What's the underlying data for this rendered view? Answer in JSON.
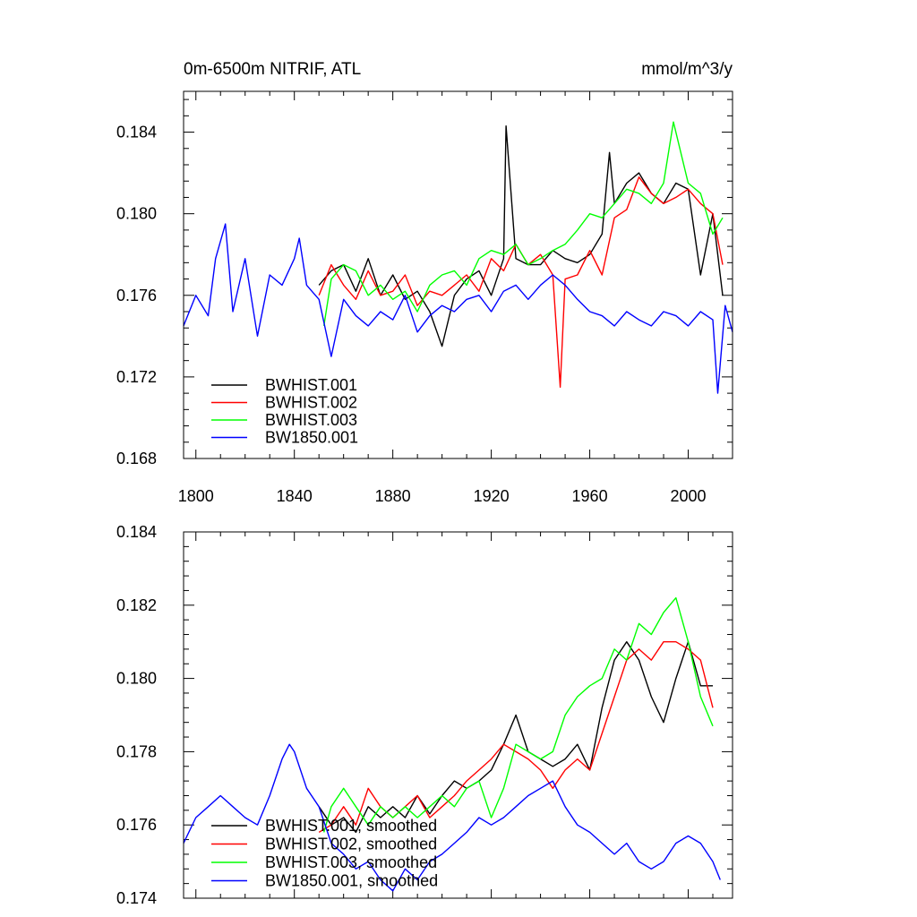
{
  "chart_data": [
    {
      "type": "line",
      "title": "0m-6500m NITRIF, ATL",
      "units": "mmol/m^3/y",
      "xlim": [
        1795,
        2018
      ],
      "ylim": [
        0.168,
        0.186
      ],
      "xticks": [
        1800,
        1840,
        1880,
        1920,
        1960,
        2000
      ],
      "yticks": [
        0.168,
        0.172,
        0.176,
        0.18,
        0.184
      ],
      "ytick_labels": [
        "0.168",
        "0.172",
        "0.176",
        "0.180",
        "0.184"
      ],
      "legend_position": "bottom-left",
      "series": [
        {
          "name": "BWHIST.001",
          "color": "#000000",
          "x": [
            1850,
            1855,
            1860,
            1865,
            1870,
            1875,
            1880,
            1885,
            1890,
            1895,
            1900,
            1905,
            1910,
            1915,
            1920,
            1925,
            1926,
            1930,
            1935,
            1940,
            1945,
            1950,
            1955,
            1960,
            1965,
            1968,
            1970,
            1975,
            1980,
            1985,
            1990,
            1995,
            2000,
            2005,
            2010,
            2014
          ],
          "values": [
            0.1765,
            0.1772,
            0.1775,
            0.1762,
            0.1778,
            0.176,
            0.177,
            0.1758,
            0.1762,
            0.1752,
            0.1735,
            0.176,
            0.1768,
            0.1772,
            0.176,
            0.1778,
            0.1843,
            0.1778,
            0.1775,
            0.1775,
            0.1782,
            0.1778,
            0.1776,
            0.178,
            0.179,
            0.183,
            0.1805,
            0.1815,
            0.182,
            0.181,
            0.1805,
            0.1815,
            0.1812,
            0.177,
            0.18,
            0.176
          ]
        },
        {
          "name": "BWHIST.002",
          "color": "#ff0000",
          "x": [
            1850,
            1855,
            1860,
            1865,
            1870,
            1875,
            1880,
            1885,
            1890,
            1895,
            1900,
            1905,
            1910,
            1915,
            1920,
            1925,
            1930,
            1935,
            1940,
            1945,
            1948,
            1950,
            1955,
            1960,
            1965,
            1970,
            1975,
            1980,
            1985,
            1990,
            1995,
            2000,
            2005,
            2010,
            2014
          ],
          "values": [
            0.176,
            0.1775,
            0.1765,
            0.1758,
            0.1772,
            0.176,
            0.1762,
            0.177,
            0.1755,
            0.1762,
            0.176,
            0.1765,
            0.177,
            0.1762,
            0.1778,
            0.1772,
            0.1785,
            0.1775,
            0.178,
            0.177,
            0.1715,
            0.1768,
            0.177,
            0.1782,
            0.177,
            0.1798,
            0.1802,
            0.1818,
            0.181,
            0.1805,
            0.1808,
            0.1812,
            0.1805,
            0.18,
            0.1775
          ]
        },
        {
          "name": "BWHIST.003",
          "color": "#00ff00",
          "x": [
            1852,
            1855,
            1860,
            1865,
            1870,
            1875,
            1880,
            1885,
            1890,
            1895,
            1900,
            1905,
            1910,
            1915,
            1920,
            1925,
            1930,
            1935,
            1940,
            1945,
            1950,
            1955,
            1960,
            1965,
            1970,
            1975,
            1980,
            1985,
            1990,
            1994,
            2000,
            2005,
            2010,
            2014
          ],
          "values": [
            0.1745,
            0.1768,
            0.1775,
            0.1772,
            0.176,
            0.1765,
            0.1758,
            0.1762,
            0.1752,
            0.1765,
            0.177,
            0.1772,
            0.1765,
            0.1778,
            0.1782,
            0.178,
            0.1785,
            0.1775,
            0.1778,
            0.1782,
            0.1785,
            0.1792,
            0.18,
            0.1798,
            0.1805,
            0.1812,
            0.181,
            0.1805,
            0.1815,
            0.1845,
            0.1815,
            0.181,
            0.179,
            0.1798
          ]
        },
        {
          "name": "BW1850.001",
          "color": "#0000ff",
          "x": [
            1795,
            1800,
            1805,
            1808,
            1812,
            1815,
            1820,
            1825,
            1830,
            1835,
            1840,
            1842,
            1845,
            1850,
            1855,
            1860,
            1865,
            1870,
            1875,
            1880,
            1885,
            1890,
            1895,
            1900,
            1905,
            1910,
            1915,
            1920,
            1925,
            1930,
            1935,
            1940,
            1945,
            1950,
            1955,
            1960,
            1965,
            1970,
            1975,
            1980,
            1985,
            1990,
            1995,
            2000,
            2005,
            2010,
            2012,
            2015,
            2018
          ],
          "values": [
            0.1745,
            0.176,
            0.175,
            0.1778,
            0.1795,
            0.1752,
            0.1778,
            0.174,
            0.177,
            0.1765,
            0.1778,
            0.1788,
            0.1765,
            0.1758,
            0.173,
            0.1758,
            0.175,
            0.1745,
            0.1752,
            0.1748,
            0.176,
            0.1742,
            0.175,
            0.1755,
            0.1752,
            0.1758,
            0.176,
            0.1752,
            0.1762,
            0.1765,
            0.1758,
            0.1765,
            0.177,
            0.1765,
            0.1758,
            0.1752,
            0.175,
            0.1745,
            0.1752,
            0.1748,
            0.1745,
            0.1752,
            0.175,
            0.1745,
            0.1752,
            0.1748,
            0.1712,
            0.1755,
            0.1742
          ]
        }
      ]
    },
    {
      "type": "line",
      "title": "",
      "xlim": [
        1795,
        2018
      ],
      "ylim": [
        0.174,
        0.184
      ],
      "xticks": [
        1800,
        1840,
        1880,
        1920,
        1960,
        2000
      ],
      "yticks": [
        0.174,
        0.176,
        0.178,
        0.18,
        0.182,
        0.184
      ],
      "ytick_labels": [
        "0.174",
        "0.176",
        "0.178",
        "0.180",
        "0.182",
        "0.184"
      ],
      "legend_position": "bottom-left",
      "series": [
        {
          "name": "BWHIST.001, smoothed",
          "color": "#000000",
          "x": [
            1850,
            1855,
            1860,
            1865,
            1870,
            1875,
            1880,
            1885,
            1890,
            1895,
            1900,
            1905,
            1910,
            1915,
            1920,
            1925,
            1930,
            1935,
            1940,
            1945,
            1950,
            1955,
            1960,
            1965,
            1970,
            1975,
            1980,
            1985,
            1990,
            1995,
            2000,
            2005,
            2010
          ],
          "values": [
            0.1765,
            0.176,
            0.1762,
            0.1758,
            0.1765,
            0.1762,
            0.1765,
            0.1762,
            0.1768,
            0.1763,
            0.1768,
            0.1772,
            0.177,
            0.1772,
            0.1775,
            0.1782,
            0.179,
            0.178,
            0.1778,
            0.1776,
            0.1778,
            0.1782,
            0.1775,
            0.1792,
            0.1805,
            0.181,
            0.1805,
            0.1795,
            0.1788,
            0.18,
            0.181,
            0.1798,
            0.1798
          ]
        },
        {
          "name": "BWHIST.002, smoothed",
          "color": "#ff0000",
          "x": [
            1850,
            1855,
            1860,
            1865,
            1870,
            1875,
            1880,
            1885,
            1890,
            1895,
            1900,
            1905,
            1910,
            1915,
            1920,
            1925,
            1930,
            1935,
            1940,
            1945,
            1950,
            1955,
            1960,
            1965,
            1970,
            1975,
            1980,
            1985,
            1990,
            1995,
            2000,
            2005,
            2010
          ],
          "values": [
            0.1758,
            0.176,
            0.1765,
            0.176,
            0.177,
            0.1765,
            0.1762,
            0.1765,
            0.1768,
            0.1762,
            0.1765,
            0.1768,
            0.1772,
            0.1775,
            0.1778,
            0.1782,
            0.178,
            0.1778,
            0.1775,
            0.177,
            0.1775,
            0.1778,
            0.1775,
            0.1785,
            0.1795,
            0.1805,
            0.1808,
            0.1805,
            0.181,
            0.181,
            0.1808,
            0.1805,
            0.1792
          ]
        },
        {
          "name": "BWHIST.003, smoothed",
          "color": "#00ff00",
          "x": [
            1852,
            1855,
            1860,
            1865,
            1870,
            1875,
            1880,
            1885,
            1890,
            1895,
            1900,
            1905,
            1910,
            1915,
            1920,
            1925,
            1930,
            1935,
            1940,
            1945,
            1950,
            1955,
            1960,
            1965,
            1970,
            1975,
            1980,
            1985,
            1990,
            1995,
            2000,
            2005,
            2010
          ],
          "values": [
            0.1758,
            0.1765,
            0.177,
            0.1765,
            0.176,
            0.1765,
            0.1762,
            0.1765,
            0.1762,
            0.1765,
            0.1768,
            0.1765,
            0.177,
            0.1772,
            0.1762,
            0.177,
            0.1782,
            0.178,
            0.1778,
            0.178,
            0.179,
            0.1795,
            0.1798,
            0.18,
            0.1808,
            0.1805,
            0.1815,
            0.1812,
            0.1818,
            0.1822,
            0.181,
            0.1795,
            0.1787
          ]
        },
        {
          "name": "BW1850.001, smoothed",
          "color": "#0000ff",
          "x": [
            1795,
            1800,
            1805,
            1810,
            1815,
            1820,
            1825,
            1830,
            1835,
            1838,
            1840,
            1845,
            1850,
            1855,
            1860,
            1865,
            1870,
            1875,
            1880,
            1885,
            1890,
            1895,
            1900,
            1905,
            1910,
            1915,
            1920,
            1925,
            1930,
            1935,
            1940,
            1945,
            1950,
            1955,
            1960,
            1965,
            1970,
            1975,
            1980,
            1985,
            1990,
            1995,
            2000,
            2005,
            2010,
            2013
          ],
          "values": [
            0.1755,
            0.1762,
            0.1765,
            0.1768,
            0.1765,
            0.1762,
            0.176,
            0.1768,
            0.1778,
            0.1782,
            0.178,
            0.177,
            0.1765,
            0.1755,
            0.1752,
            0.1748,
            0.175,
            0.1745,
            0.1742,
            0.1748,
            0.1745,
            0.175,
            0.1752,
            0.1755,
            0.1758,
            0.1762,
            0.176,
            0.1762,
            0.1765,
            0.1768,
            0.177,
            0.1772,
            0.1765,
            0.176,
            0.1758,
            0.1755,
            0.1752,
            0.1755,
            0.175,
            0.1748,
            0.175,
            0.1755,
            0.1757,
            0.1755,
            0.175,
            0.1745
          ]
        }
      ]
    }
  ]
}
